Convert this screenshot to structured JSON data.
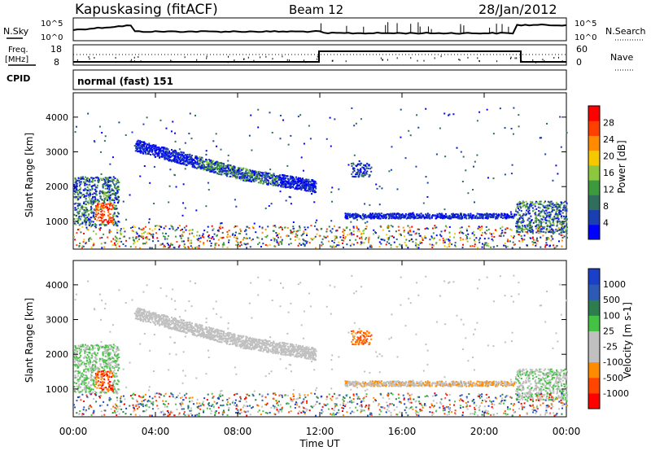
{
  "header": {
    "station": "Kapuskasing (fitACF)",
    "beam": "Beam 12",
    "date": "28/Jan/2012"
  },
  "noise_panel": {
    "left_label": "N.Sky",
    "right_label": "N.Search",
    "tick_high": "10^5",
    "tick_low": "10^0"
  },
  "freq_panel": {
    "left_label_line1": "Freq.",
    "left_label_line2": "[MHz]",
    "left_ticks": [
      "18",
      "8"
    ],
    "right_label": "Nave",
    "right_ticks": [
      "60",
      "0"
    ],
    "cpid_label": "CPID"
  },
  "mode_label": "normal (fast) 151",
  "colors": {
    "power_scale": [
      "#0000ff",
      "#1a3fb0",
      "#2f6e5c",
      "#3c9a3c",
      "#8dc63f",
      "#f5c800",
      "#ff8c00",
      "#ff4000",
      "#ff0000"
    ],
    "velocity_scale": [
      "#1a3fc8",
      "#2c5ab4",
      "#2e7d4f",
      "#44c244",
      "#c0c0c0",
      "#c0c0c0",
      "#ff8c00",
      "#ff4500",
      "#ff0000"
    ]
  },
  "chart_data": [
    {
      "type": "heatmap",
      "panel": "power",
      "ylabel": "Slant Range [km]",
      "yticks": [
        "4000",
        "3000",
        "2000",
        "1000"
      ],
      "ylim": [
        200,
        4700
      ],
      "colorbar_label": "Power [dB]",
      "colorbar_ticks": [
        "28",
        "24",
        "20",
        "16",
        "12",
        "8",
        "4"
      ],
      "x_hours": [
        0,
        24
      ],
      "scatter_regions": [
        {
          "t0": 0.0,
          "t1": 2.2,
          "r0": 900,
          "r1": 2300,
          "level": "mixed"
        },
        {
          "t0": 1.0,
          "t1": 1.9,
          "r0": 950,
          "r1": 1500,
          "level": "strong"
        },
        {
          "t0": 3.0,
          "t1": 11.8,
          "r0": 2000,
          "r1": 3500,
          "level": "arc"
        },
        {
          "t0": 13.5,
          "t1": 14.5,
          "r0": 2300,
          "r1": 2700,
          "level": "weak"
        },
        {
          "t0": 13.2,
          "t1": 21.5,
          "r0": 1100,
          "r1": 1250,
          "level": "weak"
        },
        {
          "t0": 21.5,
          "t1": 24.0,
          "r0": 700,
          "r1": 1600,
          "level": "mixed"
        },
        {
          "t0": 0.0,
          "t1": 24.0,
          "r0": 250,
          "r1": 900,
          "level": "sparse"
        }
      ]
    },
    {
      "type": "heatmap",
      "panel": "velocity",
      "ylabel": "Slant Range [km]",
      "yticks": [
        "4000",
        "3000",
        "2000",
        "1000"
      ],
      "ylim": [
        200,
        4700
      ],
      "colorbar_label": "Velocity [m s-1]",
      "colorbar_ticks": [
        "1000",
        "500",
        "100",
        "25",
        "-25",
        "-100",
        "-500",
        "-1000"
      ],
      "x_hours": [
        0,
        24
      ],
      "xlabel": "Time UT",
      "xticks": [
        "00:00",
        "04:00",
        "08:00",
        "12:00",
        "16:00",
        "20:00",
        "00:00"
      ]
    }
  ]
}
